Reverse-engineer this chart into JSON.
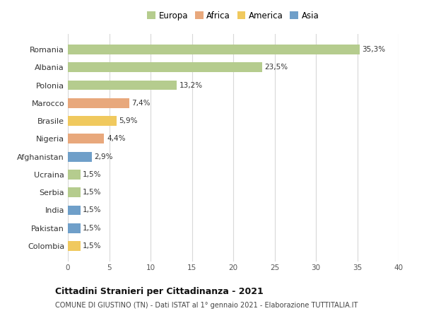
{
  "countries": [
    "Romania",
    "Albania",
    "Polonia",
    "Marocco",
    "Brasile",
    "Nigeria",
    "Afghanistan",
    "Ucraina",
    "Serbia",
    "India",
    "Pakistan",
    "Colombia"
  ],
  "values": [
    35.3,
    23.5,
    13.2,
    7.4,
    5.9,
    4.4,
    2.9,
    1.5,
    1.5,
    1.5,
    1.5,
    1.5
  ],
  "labels": [
    "35,3%",
    "23,5%",
    "13,2%",
    "7,4%",
    "5,9%",
    "4,4%",
    "2,9%",
    "1,5%",
    "1,5%",
    "1,5%",
    "1,5%",
    "1,5%"
  ],
  "continent": [
    "Europa",
    "Europa",
    "Europa",
    "Africa",
    "America",
    "Africa",
    "Asia",
    "Europa",
    "Europa",
    "Asia",
    "Asia",
    "America"
  ],
  "colors": {
    "Europa": "#b5cc8e",
    "Africa": "#e8a87c",
    "America": "#f0c95e",
    "Asia": "#6f9fc9"
  },
  "legend_order": [
    "Europa",
    "Africa",
    "America",
    "Asia"
  ],
  "title1": "Cittadini Stranieri per Cittadinanza - 2021",
  "title2": "COMUNE DI GIUSTINO (TN) - Dati ISTAT al 1° gennaio 2021 - Elaborazione TUTTITALIA.IT",
  "xlim": [
    0,
    40
  ],
  "xticks": [
    0,
    5,
    10,
    15,
    20,
    25,
    30,
    35,
    40
  ],
  "background_color": "#ffffff",
  "grid_color": "#d8d8d8"
}
